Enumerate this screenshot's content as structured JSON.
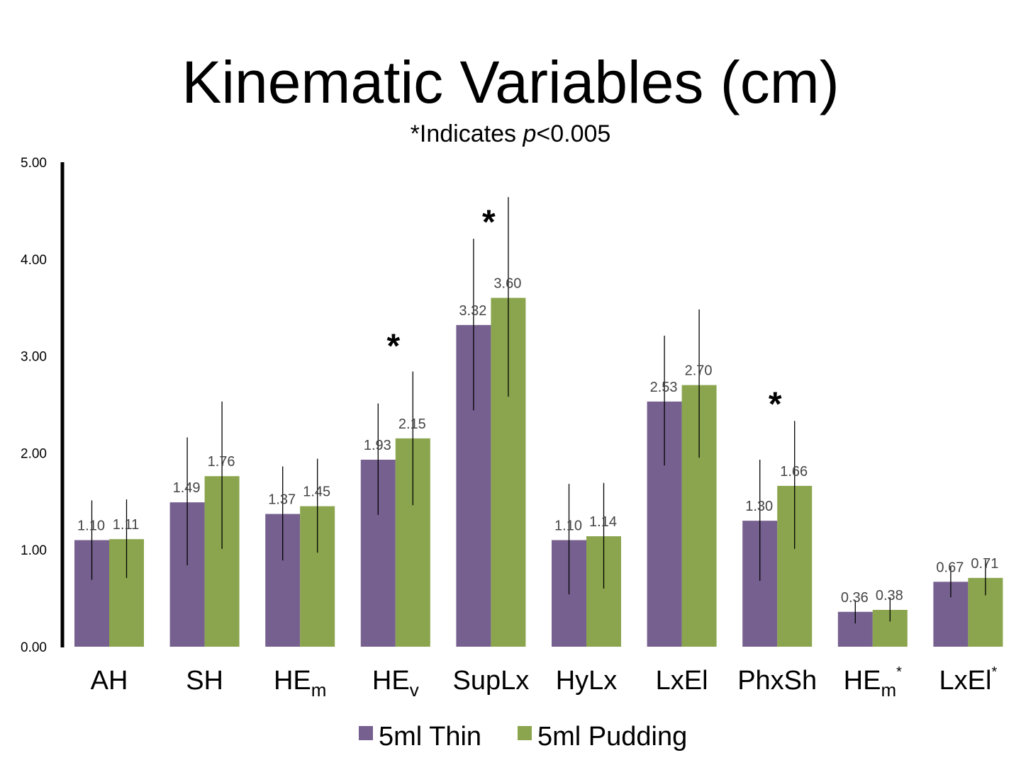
{
  "title": "Kinematic Variables (cm)",
  "subtitle": {
    "prefix": "*Indicates ",
    "italic": "p",
    "suffix": "<0.005"
  },
  "colors": {
    "thin": "#76608F",
    "pudding": "#8AA54D",
    "axis": "#000000",
    "error": "#000000"
  },
  "chart_data": {
    "type": "bar",
    "title": "Kinematic Variables (cm)",
    "subtitle": "*Indicates p<0.005",
    "xlabel": "",
    "ylabel": "",
    "ylim": [
      0,
      5
    ],
    "yticks": [
      "0.00",
      "1.00",
      "2.00",
      "3.00",
      "4.00",
      "5.00"
    ],
    "categories": [
      {
        "main": "AH",
        "sub": "",
        "sup": ""
      },
      {
        "main": "SH",
        "sub": "",
        "sup": ""
      },
      {
        "main": "HE",
        "sub": "m",
        "sup": ""
      },
      {
        "main": "HE",
        "sub": "v",
        "sup": ""
      },
      {
        "main": "SupLx",
        "sub": "",
        "sup": ""
      },
      {
        "main": "HyLx",
        "sub": "",
        "sup": ""
      },
      {
        "main": "LxEl",
        "sub": "",
        "sup": ""
      },
      {
        "main": "PhxSh",
        "sub": "",
        "sup": ""
      },
      {
        "main": "HE",
        "sub": "m",
        "sup": "*"
      },
      {
        "main": "LxEl",
        "sub": "",
        "sup": "*"
      }
    ],
    "series": [
      {
        "name": "5ml Thin",
        "values": [
          1.1,
          1.49,
          1.37,
          1.93,
          3.32,
          1.1,
          2.53,
          1.3,
          0.36,
          0.67
        ],
        "labels": [
          "1.10",
          "1.49",
          "1.37",
          "1.93",
          "3.32",
          "1.10",
          "2.53",
          "1.30",
          "0.36",
          "0.67"
        ],
        "err_low": [
          0.69,
          0.84,
          0.89,
          1.36,
          2.44,
          0.54,
          1.87,
          0.68,
          0.24,
          0.51
        ],
        "err_high": [
          1.51,
          2.16,
          1.86,
          2.51,
          4.21,
          1.68,
          3.21,
          1.93,
          0.48,
          0.83
        ]
      },
      {
        "name": "5ml Pudding",
        "values": [
          1.11,
          1.76,
          1.45,
          2.15,
          3.6,
          1.14,
          2.7,
          1.66,
          0.38,
          0.71
        ],
        "labels": [
          "1.11",
          "1.76",
          "1.45",
          "2.15",
          "3.60",
          "1.14",
          "2.70",
          "1.66",
          "0.38",
          "0.71"
        ],
        "err_low": [
          0.71,
          1.01,
          0.97,
          1.46,
          2.58,
          0.6,
          1.95,
          1.01,
          0.26,
          0.53
        ],
        "err_high": [
          1.52,
          2.53,
          1.94,
          2.84,
          4.64,
          1.69,
          3.48,
          2.33,
          0.51,
          0.9
        ]
      }
    ],
    "significance_markers": [
      {
        "category_index": 3,
        "symbol": "*",
        "value": 3.22
      },
      {
        "category_index": 4,
        "symbol": "*",
        "value": 4.5
      },
      {
        "category_index": 7,
        "symbol": "*",
        "value": 2.62
      }
    ],
    "legend": {
      "placement": "bottom",
      "entries": [
        "5ml Thin",
        "5ml Pudding"
      ]
    },
    "grid": false
  }
}
